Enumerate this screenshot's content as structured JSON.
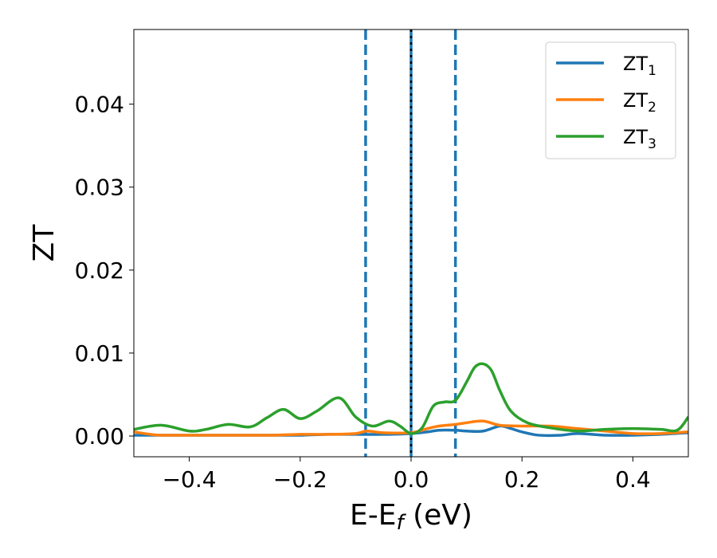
{
  "chart_data": {
    "type": "line",
    "xlabel_main": "E-E",
    "xlabel_sub": "f",
    "xlabel_unit": " (eV)",
    "ylabel": "ZT",
    "xlim": [
      -0.5,
      0.5
    ],
    "ylim": [
      -0.0025,
      0.049
    ],
    "xticks": [
      -0.4,
      -0.2,
      0.0,
      0.2,
      0.4
    ],
    "xtick_labels": [
      "−0.4",
      "−0.2",
      "0.0",
      "0.2",
      "0.4"
    ],
    "yticks": [
      0.0,
      0.01,
      0.02,
      0.03,
      0.04
    ],
    "ytick_labels": [
      "0.00",
      "0.01",
      "0.02",
      "0.03",
      "0.04"
    ],
    "grid": false,
    "legend_position": "top-right",
    "vlines": [
      {
        "x": -0.082,
        "style": "dashed",
        "color": "#1f77b4"
      },
      {
        "x": 0.0,
        "style": "solid",
        "color": "#1f77b4"
      },
      {
        "x": 0.0,
        "style": "dotted",
        "color": "#000000"
      },
      {
        "x": 0.08,
        "style": "dashed",
        "color": "#1f77b4"
      }
    ],
    "series": [
      {
        "name": "ZT",
        "sub": "1",
        "color": "#1f77b4",
        "x": [
          -0.5,
          -0.45,
          -0.4,
          -0.35,
          -0.3,
          -0.25,
          -0.2,
          -0.15,
          -0.1,
          -0.05,
          0.0,
          0.03,
          0.05,
          0.08,
          0.1,
          0.13,
          0.16,
          0.18,
          0.2,
          0.23,
          0.27,
          0.3,
          0.35,
          0.4,
          0.45,
          0.5
        ],
        "y": [
          0.0001,
          0.0001,
          0.0001,
          0.0001,
          0.0001,
          0.0001,
          0.0001,
          0.0002,
          0.0002,
          0.0002,
          0.0003,
          0.0005,
          0.0007,
          0.0007,
          0.0006,
          0.0006,
          0.0012,
          0.0009,
          0.0005,
          0.0001,
          0.0001,
          0.0003,
          0.0001,
          0.0001,
          0.0002,
          0.0004
        ]
      },
      {
        "name": "ZT",
        "sub": "2",
        "color": "#ff7f0e",
        "x": [
          -0.5,
          -0.47,
          -0.45,
          -0.4,
          -0.35,
          -0.3,
          -0.25,
          -0.2,
          -0.15,
          -0.1,
          -0.08,
          -0.05,
          0.0,
          0.03,
          0.05,
          0.08,
          0.1,
          0.13,
          0.16,
          0.2,
          0.25,
          0.3,
          0.35,
          0.4,
          0.45,
          0.5
        ],
        "y": [
          0.0005,
          0.0002,
          0.0001,
          0.0001,
          0.0001,
          0.0001,
          0.0001,
          0.0002,
          0.0002,
          0.0003,
          0.0006,
          0.0004,
          0.0004,
          0.0009,
          0.0012,
          0.0014,
          0.0016,
          0.0018,
          0.0013,
          0.0012,
          0.0012,
          0.0009,
          0.0006,
          0.0003,
          0.0003,
          0.0005
        ]
      },
      {
        "name": "ZT",
        "sub": "3",
        "color": "#2ca02c",
        "x": [
          -0.5,
          -0.45,
          -0.4,
          -0.37,
          -0.33,
          -0.29,
          -0.26,
          -0.23,
          -0.2,
          -0.17,
          -0.13,
          -0.1,
          -0.07,
          -0.04,
          -0.02,
          0.0,
          0.02,
          0.04,
          0.06,
          0.08,
          0.1,
          0.115,
          0.13,
          0.145,
          0.16,
          0.18,
          0.21,
          0.25,
          0.3,
          0.35,
          0.4,
          0.45,
          0.48,
          0.5
        ],
        "y": [
          0.0008,
          0.0013,
          0.0006,
          0.0008,
          0.0014,
          0.0011,
          0.0022,
          0.0032,
          0.0021,
          0.003,
          0.0046,
          0.0023,
          0.0012,
          0.0018,
          0.0012,
          0.0003,
          0.001,
          0.0036,
          0.0041,
          0.0043,
          0.0065,
          0.0083,
          0.0087,
          0.0079,
          0.0055,
          0.003,
          0.0016,
          0.001,
          0.0006,
          0.0008,
          0.0009,
          0.0008,
          0.0007,
          0.0023
        ]
      }
    ]
  }
}
